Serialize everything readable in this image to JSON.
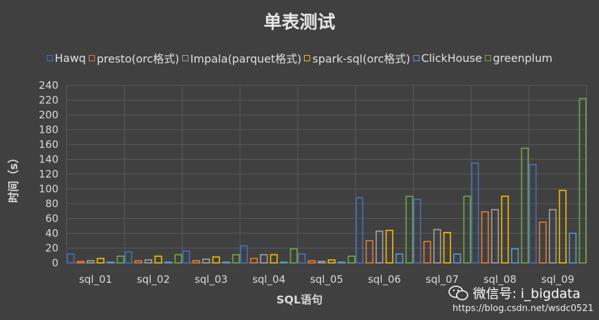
{
  "chart_data": {
    "type": "bar",
    "title": "单表测试",
    "xlabel": "SQL语句",
    "ylabel": "时间（s）",
    "ylim": [
      0,
      240
    ],
    "yticks": [
      0,
      20,
      40,
      60,
      80,
      100,
      120,
      140,
      160,
      180,
      200,
      220,
      240
    ],
    "grid": true,
    "legend_position": "top",
    "categories": [
      "sql_01",
      "sql_02",
      "sql_03",
      "sql_04",
      "sql_05",
      "sql_06",
      "sql_07",
      "sql_08",
      "sql_09"
    ],
    "series": [
      {
        "name": "Hawq",
        "color": "#4472c4",
        "values": [
          12,
          15,
          16,
          23,
          12,
          88,
          86,
          135,
          133
        ]
      },
      {
        "name": "presto(orc格式)",
        "color": "#ed7d31",
        "values": [
          2,
          3,
          3,
          6,
          3,
          30,
          29,
          69,
          55
        ]
      },
      {
        "name": "Impala(parquet格式)",
        "color": "#a5a5a5",
        "values": [
          3,
          4,
          5,
          11,
          2,
          43,
          45,
          72,
          72
        ]
      },
      {
        "name": "spark-sql(orc格式)",
        "color": "#ffc000",
        "values": [
          6,
          9,
          8,
          11,
          4,
          44,
          41,
          90,
          98
        ]
      },
      {
        "name": "ClickHouse",
        "color": "#5b9bd5",
        "values": [
          1,
          1,
          1,
          1,
          1,
          12,
          12,
          19,
          40
        ]
      },
      {
        "name": "greenplum",
        "color": "#70ad47",
        "values": [
          9,
          11,
          11,
          19,
          9,
          90,
          90,
          155,
          222
        ]
      }
    ]
  },
  "watermark": {
    "label": "微信号: i_bigdata",
    "url": "https://blog.csdn.net/wsdc0521",
    "icon": "wechat-icon"
  }
}
